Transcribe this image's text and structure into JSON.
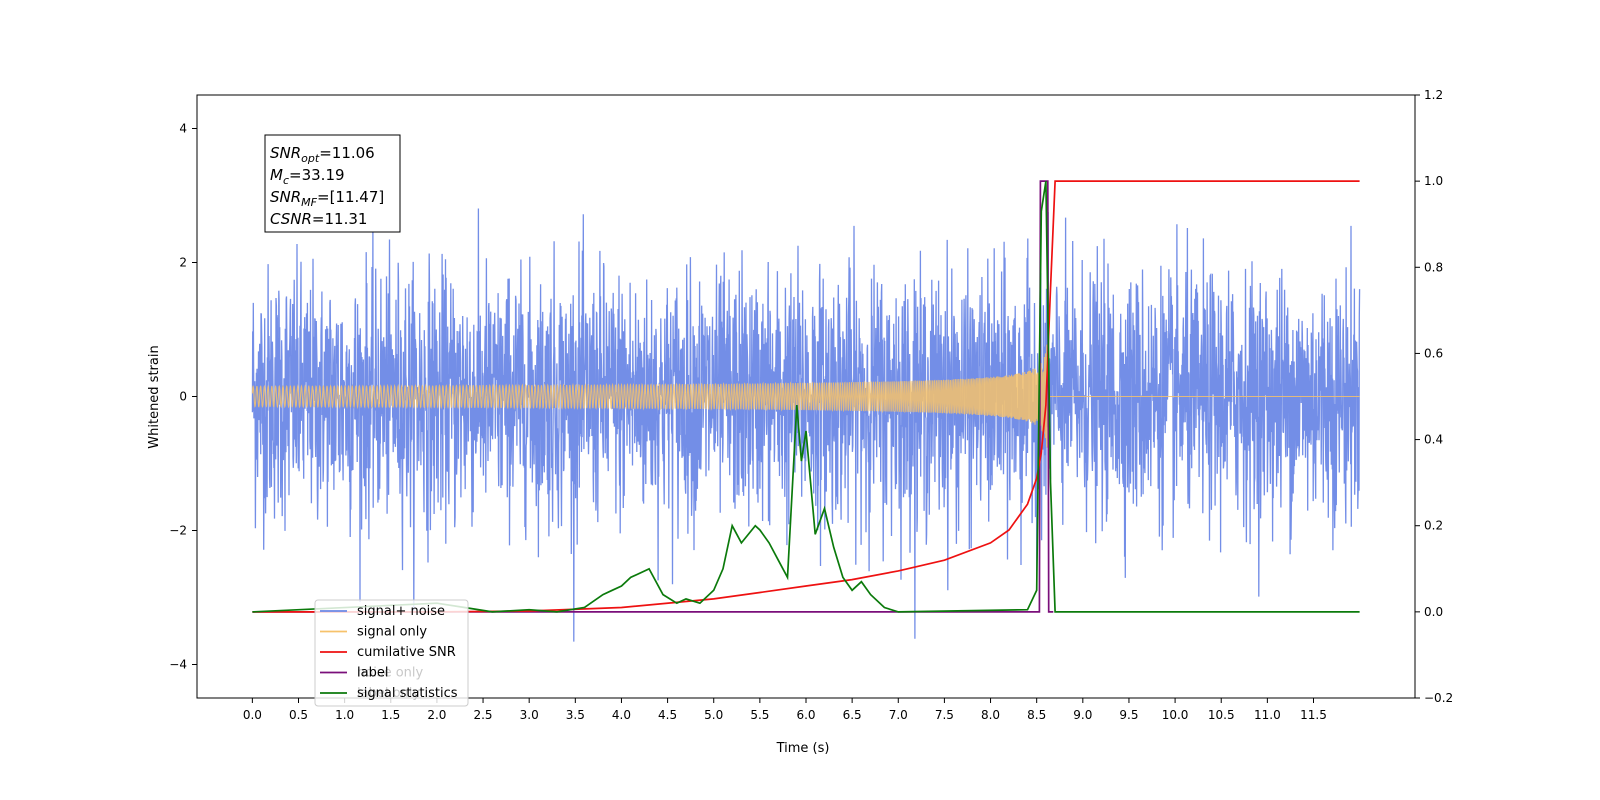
{
  "chart_data": {
    "type": "line",
    "xlabel": "Time (s)",
    "ylabel": "Whitened strain",
    "xlim": [
      -0.6,
      12.6
    ],
    "ylim": [
      -4.5,
      4.5
    ],
    "y2lim": [
      -0.2,
      1.2
    ],
    "x_ticks": [
      "0.0",
      "0.5",
      "1.0",
      "1.5",
      "2.0",
      "2.5",
      "3.0",
      "3.5",
      "4.0",
      "4.5",
      "5.0",
      "5.5",
      "6.0",
      "6.5",
      "7.0",
      "7.5",
      "8.0",
      "8.5",
      "9.0",
      "9.5",
      "10.0",
      "10.5",
      "11.0",
      "11.5"
    ],
    "y_ticks": [
      "4",
      "2",
      "0",
      "−2",
      "−4"
    ],
    "y2_ticks": [
      "1.2",
      "1.0",
      "0.8",
      "0.6",
      "0.4",
      "0.2",
      "0.0",
      "−0.2"
    ],
    "legend_position": "lower-left",
    "annotation": {
      "lines": [
        {
          "sym": "SNR",
          "sub": "opt",
          "value": "=11.06"
        },
        {
          "sym": "M",
          "sub": "c",
          "value": "=33.19"
        },
        {
          "sym": "SNR",
          "sub": "MF",
          "value": "=[11.47]"
        },
        {
          "sym": "CSNR",
          "sub": "",
          "value": "=11.31"
        }
      ]
    },
    "series": [
      {
        "name": "signal+ noise",
        "axis": "left",
        "color": "#6b88e6",
        "noise_std": 0.9,
        "t_range": [
          0.0,
          12.0
        ]
      },
      {
        "name": "signal only",
        "axis": "left",
        "color": "#f6c26b",
        "chirp": {
          "t_start": 0.0,
          "t_merger": 8.62,
          "peak_amplitude": 1.25
        }
      },
      {
        "name": "cumilative SNR",
        "axis": "right",
        "color": "#ee1111",
        "x": [
          0.0,
          1.0,
          2.0,
          3.0,
          4.0,
          5.0,
          5.5,
          6.0,
          6.5,
          7.0,
          7.5,
          8.0,
          8.2,
          8.4,
          8.5,
          8.55,
          8.6,
          8.65,
          8.7,
          9.0,
          12.0
        ],
        "y": [
          0.0,
          0.0,
          0.0,
          0.002,
          0.01,
          0.03,
          0.045,
          0.06,
          0.075,
          0.095,
          0.12,
          0.16,
          0.19,
          0.25,
          0.31,
          0.37,
          0.48,
          0.75,
          1.0,
          1.0,
          1.0
        ]
      },
      {
        "name": "label",
        "axis": "right",
        "color": "#7a0f7a",
        "x": [
          0.0,
          8.53,
          8.54,
          8.62,
          8.63,
          8.68
        ],
        "y": [
          0.0,
          0.0,
          1.0,
          1.0,
          0.0,
          0.0
        ]
      },
      {
        "name": "signal statistics",
        "axis": "right",
        "color": "#0b7a0b",
        "x": [
          0.0,
          2.0,
          2.3,
          2.6,
          3.0,
          3.3,
          3.6,
          3.8,
          3.9,
          4.0,
          4.1,
          4.3,
          4.45,
          4.6,
          4.7,
          4.85,
          5.0,
          5.1,
          5.2,
          5.25,
          5.3,
          5.45,
          5.5,
          5.6,
          5.7,
          5.8,
          5.9,
          5.95,
          6.0,
          6.05,
          6.1,
          6.2,
          6.3,
          6.4,
          6.5,
          6.6,
          6.7,
          6.85,
          7.0,
          8.4,
          8.5,
          8.55,
          8.6,
          8.65,
          8.7,
          12.0
        ],
        "y": [
          0.0,
          0.02,
          0.01,
          0.0,
          0.005,
          0.0,
          0.01,
          0.04,
          0.05,
          0.06,
          0.08,
          0.1,
          0.04,
          0.02,
          0.03,
          0.02,
          0.05,
          0.1,
          0.2,
          0.18,
          0.16,
          0.2,
          0.19,
          0.16,
          0.12,
          0.08,
          0.48,
          0.35,
          0.42,
          0.3,
          0.18,
          0.24,
          0.15,
          0.08,
          0.05,
          0.07,
          0.04,
          0.01,
          0.0,
          0.005,
          0.05,
          0.93,
          1.0,
          0.3,
          0.0,
          0.0
        ]
      }
    ],
    "legend_entries": [
      {
        "label": "signal+ noise",
        "color": "#6b88e6",
        "ghost": ""
      },
      {
        "label": "signal only",
        "color": "#f6c26b",
        "ghost": ""
      },
      {
        "label": "cumilative SNR",
        "color": "#ee1111",
        "ghost": ""
      },
      {
        "label": "label",
        "color": "#7a0f7a",
        "ghost": "noise only"
      },
      {
        "label": "signal statistics",
        "color": "#0b7a0b",
        "ghost": "label only"
      }
    ]
  }
}
